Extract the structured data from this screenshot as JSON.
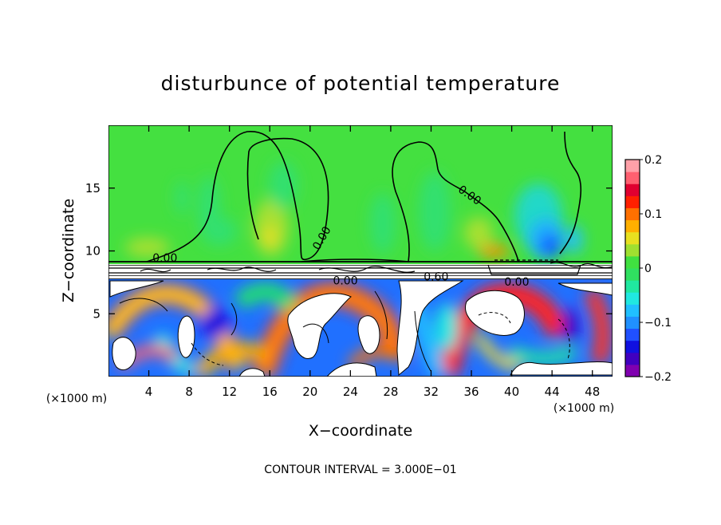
{
  "chart_data": {
    "type": "heatmap",
    "title": "disturbunce of potential temperature",
    "xlabel": "X−coordinate",
    "ylabel": "Z−coordinate",
    "x_unit_left": "(×1000 m)",
    "x_unit_right": "(×1000 m)",
    "footnote": "CONTOUR INTERVAL = 3.000E−01",
    "xlim": [
      0,
      50
    ],
    "ylim": [
      0,
      20
    ],
    "x_ticks": [
      4,
      8,
      12,
      16,
      20,
      24,
      28,
      32,
      36,
      40,
      44,
      48
    ],
    "y_ticks": [
      5,
      10,
      15
    ],
    "colorbar": {
      "range": [
        -0.2,
        0.2
      ],
      "ticks": [
        {
          "value": 0.2,
          "label": "0.2"
        },
        {
          "value": 0.1,
          "label": "0.1"
        },
        {
          "value": 0,
          "label": "0"
        },
        {
          "value": -0.1,
          "label": "−0.1"
        },
        {
          "value": -0.2,
          "label": "−0.2"
        }
      ],
      "colors": [
        "#8000b0",
        "#4000c0",
        "#1010e0",
        "#2050ff",
        "#2090ff",
        "#20c0ff",
        "#20e8e0",
        "#20e8a0",
        "#30e060",
        "#40e040",
        "#a0e030",
        "#e8e020",
        "#ffb000",
        "#ff7000",
        "#ff2000",
        "#e00030",
        "#ff6070",
        "#ffa0a8"
      ]
    },
    "contour_labels": [
      {
        "text": "0.00",
        "x": 5.6,
        "y": 9.4,
        "rotate": 0
      },
      {
        "text": "0.00",
        "x": 21.2,
        "y": 11.0,
        "rotate": -60
      },
      {
        "text": "0.00",
        "x": 35.8,
        "y": 14.4,
        "rotate": 35
      },
      {
        "text": "0.60",
        "x": 32.5,
        "y": 7.9,
        "rotate": 0
      },
      {
        "text": "0.00",
        "x": 23.5,
        "y": 7.6,
        "rotate": 0
      },
      {
        "text": "0.00",
        "x": 40.5,
        "y": 7.5,
        "rotate": 0
      }
    ]
  }
}
